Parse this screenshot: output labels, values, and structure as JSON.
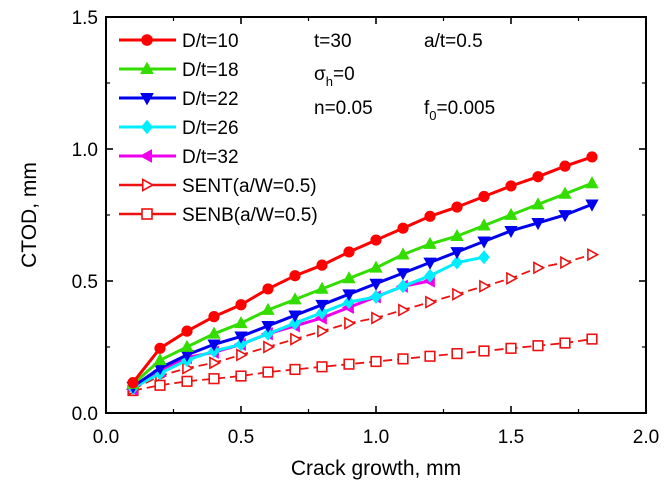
{
  "chart_data": {
    "type": "line",
    "xlabel": "Crack growth, mm",
    "ylabel": "CTOD, mm",
    "xlim": [
      0.0,
      2.0
    ],
    "ylim": [
      0.0,
      1.5
    ],
    "xticks": [
      "0.0",
      "0.5",
      "1.0",
      "1.5",
      "2.0"
    ],
    "yticks": [
      "0.0",
      "0.5",
      "1.0",
      "1.5"
    ],
    "legend_position": "top-left",
    "annotations": [
      {
        "text": "t=30"
      },
      {
        "text": "a/t=0.5"
      },
      {
        "text": "σ",
        "subscript": "h",
        "suffix": "=0"
      },
      {
        "text": "n=0.05"
      },
      {
        "text": "f",
        "subscript": "0",
        "suffix": "=0.005"
      }
    ],
    "series": [
      {
        "name": "D/t=10",
        "color": "#ff0000",
        "marker": "circle",
        "filled": true,
        "dashed": false,
        "x": [
          0.1,
          0.2,
          0.3,
          0.4,
          0.5,
          0.6,
          0.7,
          0.8,
          0.9,
          1.0,
          1.1,
          1.2,
          1.3,
          1.4,
          1.5,
          1.6,
          1.7,
          1.8
        ],
        "y": [
          0.115,
          0.245,
          0.31,
          0.365,
          0.41,
          0.47,
          0.52,
          0.56,
          0.61,
          0.655,
          0.7,
          0.745,
          0.78,
          0.82,
          0.86,
          0.895,
          0.935,
          0.97
        ]
      },
      {
        "name": "D/t=18",
        "color": "#33dd00",
        "marker": "triangle-up",
        "filled": true,
        "dashed": false,
        "x": [
          0.1,
          0.2,
          0.3,
          0.4,
          0.5,
          0.6,
          0.7,
          0.8,
          0.9,
          1.0,
          1.1,
          1.2,
          1.3,
          1.4,
          1.5,
          1.6,
          1.7,
          1.8
        ],
        "y": [
          0.11,
          0.2,
          0.25,
          0.3,
          0.34,
          0.39,
          0.43,
          0.47,
          0.51,
          0.55,
          0.6,
          0.64,
          0.67,
          0.71,
          0.75,
          0.79,
          0.83,
          0.87
        ]
      },
      {
        "name": "D/t=22",
        "color": "#0000ee",
        "marker": "triangle-down",
        "filled": true,
        "dashed": false,
        "x": [
          0.1,
          0.2,
          0.3,
          0.4,
          0.5,
          0.6,
          0.7,
          0.8,
          0.9,
          1.0,
          1.1,
          1.2,
          1.3,
          1.4,
          1.5,
          1.6,
          1.7,
          1.8
        ],
        "y": [
          0.1,
          0.17,
          0.22,
          0.26,
          0.29,
          0.33,
          0.37,
          0.41,
          0.45,
          0.49,
          0.53,
          0.57,
          0.61,
          0.65,
          0.69,
          0.72,
          0.75,
          0.79
        ]
      },
      {
        "name": "D/t=26",
        "color": "#00eeff",
        "marker": "diamond",
        "filled": true,
        "dashed": false,
        "x": [
          0.1,
          0.2,
          0.3,
          0.4,
          0.5,
          0.6,
          0.7,
          0.8,
          0.9,
          1.0,
          1.1,
          1.2,
          1.3,
          1.4
        ],
        "y": [
          0.095,
          0.15,
          0.2,
          0.235,
          0.26,
          0.3,
          0.34,
          0.38,
          0.42,
          0.44,
          0.48,
          0.52,
          0.57,
          0.59
        ]
      },
      {
        "name": "D/t=32",
        "color": "#ee00ee",
        "marker": "triangle-left",
        "filled": true,
        "dashed": false,
        "x": [
          0.1,
          0.2,
          0.3,
          0.4,
          0.5,
          0.6,
          0.7,
          0.8,
          0.9,
          1.0,
          1.1,
          1.2
        ],
        "y": [
          0.09,
          0.16,
          0.21,
          0.23,
          0.26,
          0.3,
          0.33,
          0.36,
          0.4,
          0.44,
          0.48,
          0.5
        ]
      },
      {
        "name": "SENT(a/W=0.5)",
        "color": "#ee1111",
        "marker": "triangle-right",
        "filled": false,
        "dashed": true,
        "x": [
          0.1,
          0.2,
          0.3,
          0.4,
          0.5,
          0.6,
          0.7,
          0.8,
          0.9,
          1.0,
          1.1,
          1.2,
          1.3,
          1.4,
          1.5,
          1.6,
          1.7,
          1.8
        ],
        "y": [
          0.09,
          0.14,
          0.17,
          0.19,
          0.22,
          0.25,
          0.28,
          0.31,
          0.34,
          0.36,
          0.39,
          0.42,
          0.45,
          0.48,
          0.51,
          0.55,
          0.57,
          0.6
        ]
      },
      {
        "name": "SENB(a/W=0.5)",
        "color": "#ee1111",
        "marker": "square",
        "filled": false,
        "dashed": true,
        "x": [
          0.1,
          0.2,
          0.3,
          0.4,
          0.5,
          0.6,
          0.7,
          0.8,
          0.9,
          1.0,
          1.1,
          1.2,
          1.3,
          1.4,
          1.5,
          1.6,
          1.7,
          1.8
        ],
        "y": [
          0.085,
          0.105,
          0.12,
          0.13,
          0.14,
          0.155,
          0.165,
          0.175,
          0.185,
          0.195,
          0.205,
          0.215,
          0.225,
          0.235,
          0.245,
          0.255,
          0.265,
          0.28
        ]
      }
    ]
  }
}
